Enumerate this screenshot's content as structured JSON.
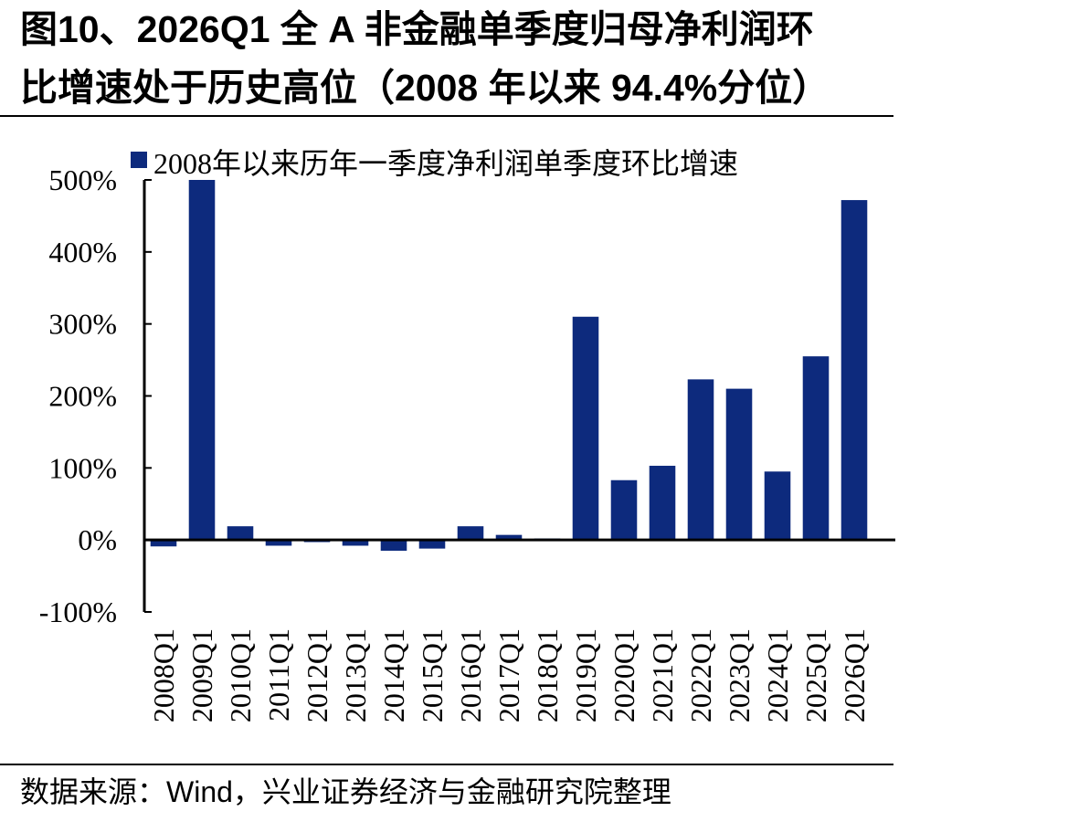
{
  "title_line1": "图10、2026Q1 全 A 非金融单季度归母净利润环",
  "title_line2": "比增速处于历史高位（2008 年以来 94.4%分位）",
  "source": "数据来源：Wind，兴业证券经济与金融研究院整理",
  "colors": {
    "bar": "#0d2a7d",
    "axis": "#000000"
  },
  "chart_data": {
    "type": "bar",
    "legend": "2008年以来历年一季度净利润单季度环比增速",
    "legend_position": "top",
    "categories": [
      "2008Q1",
      "2009Q1",
      "2010Q1",
      "2011Q1",
      "2012Q1",
      "2013Q1",
      "2014Q1",
      "2015Q1",
      "2016Q1",
      "2017Q1",
      "2018Q1",
      "2019Q1",
      "2020Q1",
      "2021Q1",
      "2022Q1",
      "2023Q1",
      "2024Q1",
      "2025Q1",
      "2026Q1"
    ],
    "values": [
      -9,
      500,
      19,
      -8,
      -3,
      -8,
      -15,
      -12,
      19,
      7,
      2,
      310,
      83,
      103,
      223,
      210,
      95,
      255,
      472
    ],
    "yticks": [
      -100,
      0,
      100,
      200,
      300,
      400,
      500
    ],
    "ytick_labels": [
      "-100%",
      "0%",
      "100%",
      "200%",
      "300%",
      "400%",
      "500%"
    ],
    "ylim": [
      -100,
      500
    ],
    "grid": false
  }
}
